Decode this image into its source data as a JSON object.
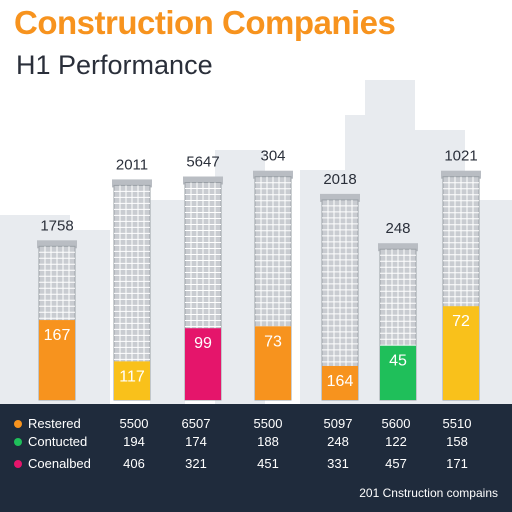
{
  "header": {
    "title": "Construction Companies",
    "subtitle": "H1 Performance"
  },
  "colors": {
    "title": "#f7931e",
    "orange": "#f7931e",
    "yellow": "#f9c11b",
    "magenta": "#e5156b",
    "green": "#1fbf5a",
    "building": "#c9ccd1",
    "skyline": "#e8ebef",
    "footer": "#1f2b3c"
  },
  "chart_data": {
    "type": "bar",
    "bars": [
      {
        "top_label": "1758",
        "fill_label": "167",
        "fill_color": "orange",
        "height_fraction": 0.53,
        "fill_fraction": 0.52
      },
      {
        "top_label": "2011",
        "fill_label": "117",
        "fill_color": "yellow",
        "height_fraction": 0.74,
        "fill_fraction": 0.18
      },
      {
        "top_label": "5647",
        "fill_label": "99",
        "fill_color": "magenta",
        "height_fraction": 0.75,
        "fill_fraction": 0.33
      },
      {
        "top_label": "304",
        "fill_label": "73",
        "fill_color": "orange",
        "height_fraction": 0.77,
        "fill_fraction": 0.33
      },
      {
        "top_label": "2018",
        "fill_label": "164",
        "fill_color": "orange",
        "height_fraction": 0.69,
        "fill_fraction": 0.17
      },
      {
        "top_label": "248",
        "fill_label": "45",
        "fill_color": "green",
        "height_fraction": 0.52,
        "fill_fraction": 0.36
      },
      {
        "top_label": "1021",
        "fill_label": "72",
        "fill_color": "yellow",
        "height_fraction": 0.77,
        "fill_fraction": 0.42
      }
    ]
  },
  "table": {
    "rows": [
      {
        "label": "Restered",
        "color": "orange",
        "values": [
          "5500",
          "6507",
          "5500",
          "5097",
          "5600",
          "5510"
        ]
      },
      {
        "label": "Contucted",
        "color": "green",
        "values": [
          "194",
          "174",
          "188",
          "248",
          "122",
          "158"
        ]
      },
      {
        "label": "Coenalbed",
        "color": "magenta",
        "values": [
          "406",
          "321",
          "451",
          "331",
          "457",
          "171"
        ]
      }
    ]
  },
  "footer_caption": "201 Cnstruction compains"
}
